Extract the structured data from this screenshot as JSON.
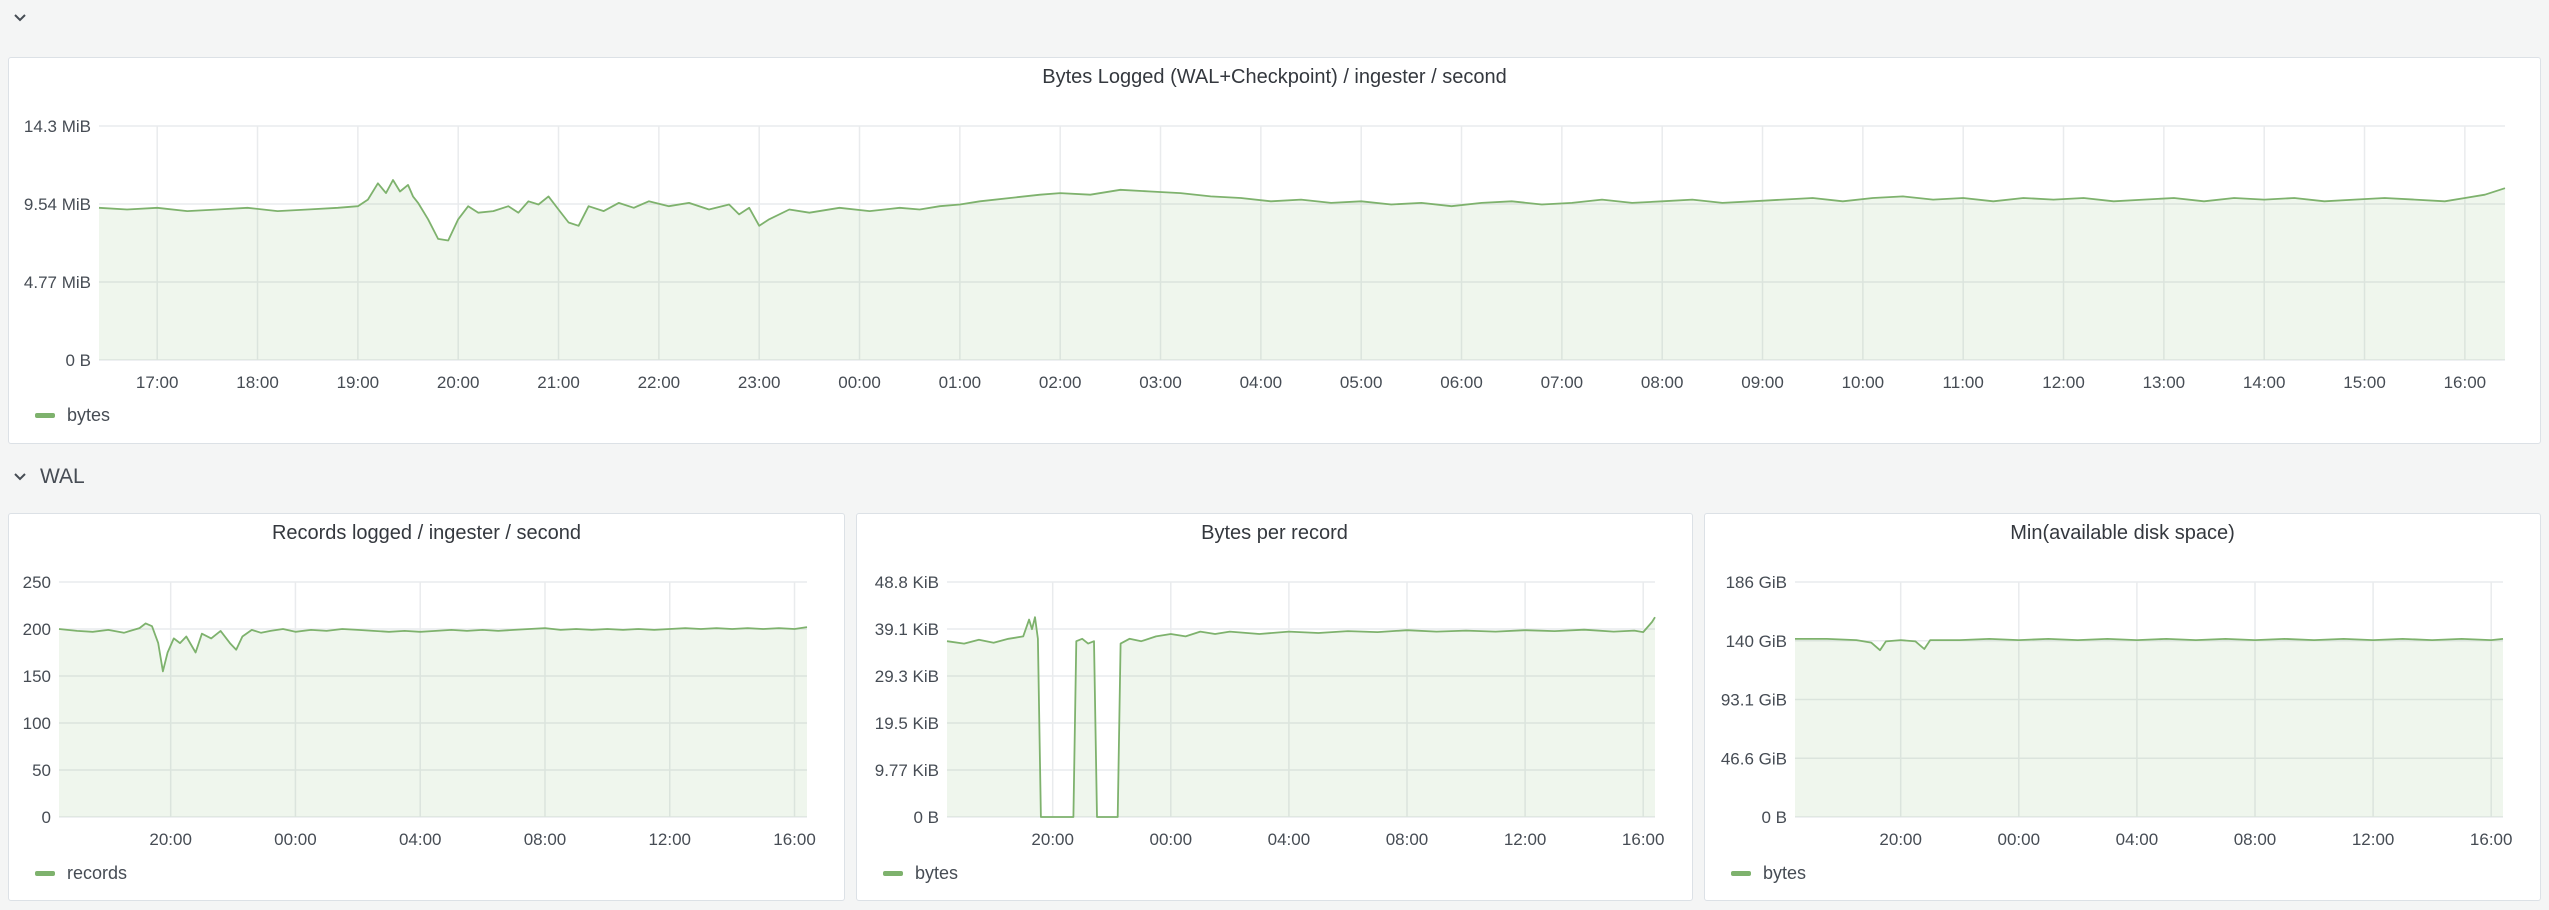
{
  "colors": {
    "series": "#7eb26d",
    "fill": "rgba(126,178,109,0.12)",
    "grid": "#e9ebed",
    "axis_text": "#464c54"
  },
  "rows": {
    "top_chevron_icon": "chevron-down-icon",
    "wal": {
      "title": "WAL",
      "icon": "chevron-down-icon"
    }
  },
  "chart_data": [
    {
      "type": "area",
      "title": "Bytes Logged (WAL+Checkpoint) / ingester / second",
      "xlabel": "",
      "ylabel": "",
      "x_ticks": [
        "17:00",
        "18:00",
        "19:00",
        "20:00",
        "21:00",
        "22:00",
        "23:00",
        "00:00",
        "01:00",
        "02:00",
        "03:00",
        "04:00",
        "05:00",
        "06:00",
        "07:00",
        "08:00",
        "09:00",
        "10:00",
        "11:00",
        "12:00",
        "13:00",
        "14:00",
        "15:00",
        "16:00"
      ],
      "x_unit": "hours",
      "x_range": [
        -0.58,
        23.4
      ],
      "y_ticks": [
        "0 B",
        "4.77 MiB",
        "9.54 MiB",
        "14.3 MiB"
      ],
      "y_range": [
        0,
        14.3
      ],
      "y_unit": "MiB",
      "grid": true,
      "legend": "bottom-left",
      "series": [
        {
          "name": "bytes",
          "color": "#7eb26d",
          "points": [
            [
              -0.58,
              9.3
            ],
            [
              -0.3,
              9.2
            ],
            [
              0,
              9.3
            ],
            [
              0.3,
              9.1
            ],
            [
              0.6,
              9.2
            ],
            [
              0.9,
              9.3
            ],
            [
              1.2,
              9.1
            ],
            [
              1.5,
              9.2
            ],
            [
              1.8,
              9.3
            ],
            [
              2.0,
              9.4
            ],
            [
              2.1,
              9.8
            ],
            [
              2.2,
              10.8
            ],
            [
              2.28,
              10.2
            ],
            [
              2.35,
              11.0
            ],
            [
              2.42,
              10.3
            ],
            [
              2.5,
              10.7
            ],
            [
              2.55,
              10.0
            ],
            [
              2.6,
              9.6
            ],
            [
              2.7,
              8.6
            ],
            [
              2.8,
              7.4
            ],
            [
              2.9,
              7.3
            ],
            [
              3.0,
              8.6
            ],
            [
              3.1,
              9.4
            ],
            [
              3.2,
              9.0
            ],
            [
              3.35,
              9.1
            ],
            [
              3.5,
              9.4
            ],
            [
              3.6,
              9.0
            ],
            [
              3.7,
              9.7
            ],
            [
              3.8,
              9.5
            ],
            [
              3.9,
              10.0
            ],
            [
              4.0,
              9.2
            ],
            [
              4.1,
              8.4
            ],
            [
              4.2,
              8.2
            ],
            [
              4.3,
              9.4
            ],
            [
              4.45,
              9.1
            ],
            [
              4.6,
              9.6
            ],
            [
              4.75,
              9.3
            ],
            [
              4.9,
              9.7
            ],
            [
              5.1,
              9.4
            ],
            [
              5.3,
              9.6
            ],
            [
              5.5,
              9.2
            ],
            [
              5.7,
              9.5
            ],
            [
              5.8,
              8.9
            ],
            [
              5.9,
              9.3
            ],
            [
              6.0,
              8.2
            ],
            [
              6.1,
              8.6
            ],
            [
              6.3,
              9.2
            ],
            [
              6.5,
              9.0
            ],
            [
              6.8,
              9.3
            ],
            [
              7.1,
              9.1
            ],
            [
              7.4,
              9.3
            ],
            [
              7.6,
              9.2
            ],
            [
              7.8,
              9.4
            ],
            [
              8.0,
              9.5
            ],
            [
              8.2,
              9.7
            ],
            [
              8.5,
              9.9
            ],
            [
              8.8,
              10.1
            ],
            [
              9.0,
              10.2
            ],
            [
              9.3,
              10.1
            ],
            [
              9.6,
              10.4
            ],
            [
              9.9,
              10.3
            ],
            [
              10.2,
              10.2
            ],
            [
              10.5,
              10.0
            ],
            [
              10.8,
              9.9
            ],
            [
              11.1,
              9.7
            ],
            [
              11.4,
              9.8
            ],
            [
              11.7,
              9.6
            ],
            [
              12.0,
              9.7
            ],
            [
              12.3,
              9.5
            ],
            [
              12.6,
              9.6
            ],
            [
              12.9,
              9.4
            ],
            [
              13.2,
              9.6
            ],
            [
              13.5,
              9.7
            ],
            [
              13.8,
              9.5
            ],
            [
              14.1,
              9.6
            ],
            [
              14.4,
              9.8
            ],
            [
              14.7,
              9.6
            ],
            [
              15.0,
              9.7
            ],
            [
              15.3,
              9.8
            ],
            [
              15.6,
              9.6
            ],
            [
              15.9,
              9.7
            ],
            [
              16.2,
              9.8
            ],
            [
              16.5,
              9.9
            ],
            [
              16.8,
              9.7
            ],
            [
              17.1,
              9.9
            ],
            [
              17.4,
              10.0
            ],
            [
              17.7,
              9.8
            ],
            [
              18.0,
              9.9
            ],
            [
              18.3,
              9.7
            ],
            [
              18.6,
              9.9
            ],
            [
              18.9,
              9.8
            ],
            [
              19.2,
              9.9
            ],
            [
              19.5,
              9.7
            ],
            [
              19.8,
              9.8
            ],
            [
              20.1,
              9.9
            ],
            [
              20.4,
              9.7
            ],
            [
              20.7,
              9.9
            ],
            [
              21.0,
              9.8
            ],
            [
              21.3,
              9.9
            ],
            [
              21.6,
              9.7
            ],
            [
              21.9,
              9.8
            ],
            [
              22.2,
              9.9
            ],
            [
              22.5,
              9.8
            ],
            [
              22.8,
              9.7
            ],
            [
              23.0,
              9.9
            ],
            [
              23.2,
              10.1
            ],
            [
              23.4,
              10.5
            ]
          ]
        }
      ]
    },
    {
      "type": "area",
      "title": "Records logged / ingester / second",
      "xlabel": "",
      "ylabel": "",
      "x_ticks": [
        "20:00",
        "00:00",
        "04:00",
        "08:00",
        "12:00",
        "16:00"
      ],
      "x_tick_values": [
        3,
        7,
        11,
        15,
        19,
        23
      ],
      "x_range": [
        -0.58,
        23.4
      ],
      "y_ticks": [
        "0",
        "50",
        "100",
        "150",
        "200",
        "250"
      ],
      "y_range": [
        0,
        250
      ],
      "grid": true,
      "legend": "bottom-left",
      "series": [
        {
          "name": "records",
          "color": "#7eb26d",
          "points": [
            [
              -0.58,
              200
            ],
            [
              0,
              198
            ],
            [
              0.5,
              197
            ],
            [
              1.0,
              199
            ],
            [
              1.5,
              196
            ],
            [
              2.0,
              201
            ],
            [
              2.2,
              206
            ],
            [
              2.4,
              203
            ],
            [
              2.6,
              185
            ],
            [
              2.75,
              155
            ],
            [
              2.9,
              175
            ],
            [
              3.1,
              190
            ],
            [
              3.3,
              185
            ],
            [
              3.5,
              192
            ],
            [
              3.8,
              175
            ],
            [
              4.0,
              195
            ],
            [
              4.3,
              190
            ],
            [
              4.6,
              198
            ],
            [
              4.9,
              185
            ],
            [
              5.1,
              178
            ],
            [
              5.3,
              192
            ],
            [
              5.6,
              199
            ],
            [
              5.9,
              196
            ],
            [
              6.2,
              198
            ],
            [
              6.6,
              200
            ],
            [
              7.0,
              197
            ],
            [
              7.5,
              199
            ],
            [
              8.0,
              198
            ],
            [
              8.5,
              200
            ],
            [
              9.0,
              199
            ],
            [
              9.5,
              198
            ],
            [
              10.0,
              197
            ],
            [
              10.5,
              198
            ],
            [
              11.0,
              197
            ],
            [
              11.5,
              198
            ],
            [
              12.0,
              199
            ],
            [
              12.5,
              198
            ],
            [
              13.0,
              199
            ],
            [
              13.5,
              198
            ],
            [
              14.0,
              199
            ],
            [
              14.5,
              200
            ],
            [
              15.0,
              201
            ],
            [
              15.5,
              199
            ],
            [
              16.0,
              200
            ],
            [
              16.5,
              199
            ],
            [
              17.0,
              200
            ],
            [
              17.5,
              199
            ],
            [
              18.0,
              200
            ],
            [
              18.5,
              199
            ],
            [
              19.0,
              200
            ],
            [
              19.5,
              201
            ],
            [
              20.0,
              200
            ],
            [
              20.5,
              201
            ],
            [
              21.0,
              200
            ],
            [
              21.5,
              201
            ],
            [
              22.0,
              200
            ],
            [
              22.5,
              201
            ],
            [
              23.0,
              200
            ],
            [
              23.4,
              202
            ]
          ]
        }
      ]
    },
    {
      "type": "area",
      "title": "Bytes per record",
      "xlabel": "",
      "ylabel": "",
      "x_ticks": [
        "20:00",
        "00:00",
        "04:00",
        "08:00",
        "12:00",
        "16:00"
      ],
      "x_tick_values": [
        3,
        7,
        11,
        15,
        19,
        23
      ],
      "x_range": [
        -0.58,
        23.4
      ],
      "y_ticks": [
        "0 B",
        "9.77 KiB",
        "19.5 KiB",
        "29.3 KiB",
        "39.1 KiB",
        "48.8 KiB"
      ],
      "y_range": [
        0,
        48.8
      ],
      "y_unit": "KiB",
      "grid": true,
      "legend": "bottom-left",
      "series": [
        {
          "name": "bytes",
          "color": "#7eb26d",
          "points": [
            [
              -0.58,
              36.5
            ],
            [
              0,
              36.0
            ],
            [
              0.5,
              36.8
            ],
            [
              1.0,
              36.2
            ],
            [
              1.5,
              37.0
            ],
            [
              2.0,
              37.5
            ],
            [
              2.2,
              41.0
            ],
            [
              2.3,
              39.0
            ],
            [
              2.4,
              41.5
            ],
            [
              2.5,
              37.0
            ],
            [
              2.6,
              0
            ],
            [
              3.7,
              0
            ],
            [
              3.8,
              36.5
            ],
            [
              4.0,
              37.0
            ],
            [
              4.2,
              36.0
            ],
            [
              4.4,
              36.5
            ],
            [
              4.5,
              0
            ],
            [
              5.2,
              0
            ],
            [
              5.3,
              36.0
            ],
            [
              5.6,
              37.0
            ],
            [
              6.0,
              36.5
            ],
            [
              6.5,
              37.5
            ],
            [
              7.0,
              38.0
            ],
            [
              7.5,
              37.5
            ],
            [
              8.0,
              38.5
            ],
            [
              8.5,
              38.0
            ],
            [
              9.0,
              38.5
            ],
            [
              10.0,
              38.0
            ],
            [
              11.0,
              38.5
            ],
            [
              12.0,
              38.2
            ],
            [
              13.0,
              38.6
            ],
            [
              14.0,
              38.4
            ],
            [
              15.0,
              38.8
            ],
            [
              16.0,
              38.5
            ],
            [
              17.0,
              38.7
            ],
            [
              18.0,
              38.5
            ],
            [
              19.0,
              38.8
            ],
            [
              20.0,
              38.6
            ],
            [
              21.0,
              38.9
            ],
            [
              22.0,
              38.5
            ],
            [
              22.7,
              38.7
            ],
            [
              23.0,
              38.4
            ],
            [
              23.3,
              40.5
            ],
            [
              23.4,
              41.5
            ]
          ]
        }
      ]
    },
    {
      "type": "area",
      "title": "Min(available disk space)",
      "xlabel": "",
      "ylabel": "",
      "x_ticks": [
        "20:00",
        "00:00",
        "04:00",
        "08:00",
        "12:00",
        "16:00"
      ],
      "x_tick_values": [
        3,
        7,
        11,
        15,
        19,
        23
      ],
      "x_range": [
        -0.58,
        23.4
      ],
      "y_ticks": [
        "0 B",
        "46.6 GiB",
        "93.1 GiB",
        "140 GiB",
        "186 GiB"
      ],
      "y_range": [
        0,
        186
      ],
      "y_unit": "GiB",
      "grid": true,
      "legend": "bottom-left",
      "series": [
        {
          "name": "bytes",
          "color": "#7eb26d",
          "points": [
            [
              -0.58,
              141
            ],
            [
              0.5,
              141
            ],
            [
              1.5,
              140
            ],
            [
              2.0,
              138
            ],
            [
              2.3,
              132
            ],
            [
              2.5,
              139
            ],
            [
              3.0,
              140
            ],
            [
              3.5,
              139
            ],
            [
              3.8,
              133
            ],
            [
              4.0,
              140
            ],
            [
              5.0,
              140
            ],
            [
              6.0,
              141
            ],
            [
              7.0,
              140
            ],
            [
              8.0,
              141
            ],
            [
              9.0,
              140
            ],
            [
              10.0,
              141
            ],
            [
              11.0,
              140
            ],
            [
              12.0,
              141
            ],
            [
              13.0,
              140
            ],
            [
              14.0,
              141
            ],
            [
              15.0,
              140
            ],
            [
              16.0,
              141
            ],
            [
              17.0,
              140
            ],
            [
              18.0,
              141
            ],
            [
              19.0,
              140
            ],
            [
              20.0,
              141
            ],
            [
              21.0,
              140
            ],
            [
              22.0,
              141
            ],
            [
              23.0,
              140
            ],
            [
              23.4,
              141
            ]
          ]
        }
      ]
    }
  ]
}
